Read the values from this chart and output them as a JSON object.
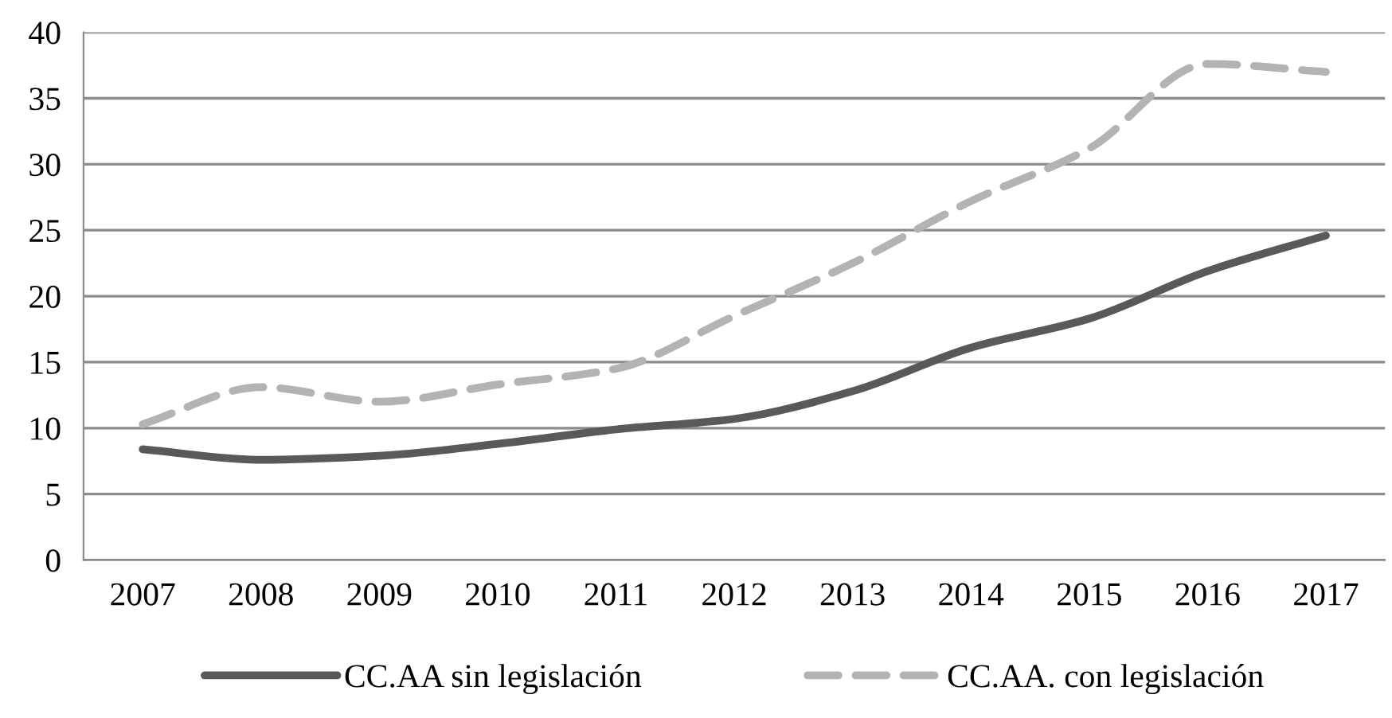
{
  "chart_data": {
    "type": "line",
    "categories": [
      "2007",
      "2008",
      "2009",
      "2010",
      "2011",
      "2012",
      "2013",
      "2014",
      "2015",
      "2016",
      "2017"
    ],
    "series": [
      {
        "name": "CC.AA sin legislación",
        "color": "#595959",
        "line_style": "solid",
        "values": [
          8.4,
          7.6,
          7.9,
          8.8,
          9.9,
          10.7,
          12.8,
          16.1,
          18.3,
          21.9,
          24.6
        ]
      },
      {
        "name": "CC.AA. con legislación",
        "color": "#b3b3b3",
        "line_style": "dashed",
        "values": [
          10.3,
          13.1,
          12.0,
          13.3,
          14.5,
          18.5,
          22.5,
          27.2,
          31.2,
          37.6,
          37.0
        ]
      }
    ],
    "ylim": [
      0,
      40
    ],
    "yticks": [
      0,
      5,
      10,
      15,
      20,
      25,
      30,
      35,
      40
    ],
    "grid": "y",
    "legend": "bottom",
    "marker": "none"
  }
}
